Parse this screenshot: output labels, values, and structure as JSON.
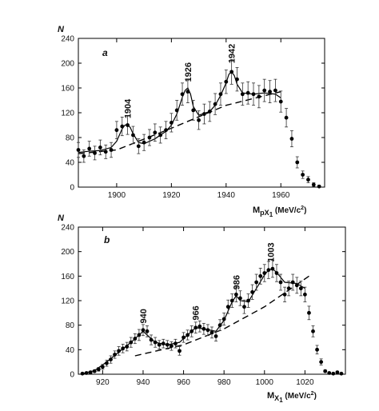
{
  "chart_data": [
    {
      "type": "scatter",
      "panel_label": "a",
      "y_title": "N",
      "x_label_main": "M",
      "x_label_sub": "pX",
      "x_label_subsub": "1",
      "x_label_unit_open": " (MeV/c",
      "x_label_unit_sup": "2",
      "x_label_unit_close": ")",
      "xlim": [
        1886,
        1976
      ],
      "ylim": [
        0,
        240
      ],
      "x_ticks": [
        1900,
        1920,
        1940,
        1960
      ],
      "y_ticks": [
        0,
        40,
        80,
        120,
        160,
        200,
        240
      ],
      "peaks": [
        {
          "label": "1904",
          "x": 1904,
          "y": 103
        },
        {
          "label": "1926",
          "x": 1926,
          "y": 162
        },
        {
          "label": "1942",
          "x": 1942,
          "y": 192
        }
      ],
      "series": [
        {
          "x": [
            1886,
            1888,
            1890,
            1892,
            1894,
            1896,
            1898,
            1900,
            1902,
            1904,
            1906,
            1908,
            1910,
            1912,
            1914,
            1916,
            1918,
            1920,
            1922,
            1924,
            1926,
            1928,
            1930,
            1932,
            1934,
            1936,
            1938,
            1940,
            1942,
            1944,
            1946,
            1948,
            1950,
            1952,
            1954,
            1956,
            1958,
            1960,
            1962,
            1964,
            1966,
            1968,
            1970,
            1972,
            1974
          ],
          "y": [
            60,
            50,
            62,
            55,
            64,
            57,
            60,
            92,
            98,
            100,
            84,
            66,
            72,
            80,
            88,
            84,
            92,
            104,
            124,
            150,
            154,
            124,
            108,
            118,
            122,
            134,
            150,
            170,
            186,
            174,
            150,
            152,
            150,
            146,
            156,
            154,
            156,
            138,
            112,
            78,
            40,
            20,
            12,
            4,
            1
          ],
          "err": [
            12,
            10,
            12,
            11,
            12,
            11,
            12,
            14,
            15,
            15,
            14,
            12,
            13,
            13,
            14,
            13,
            14,
            15,
            16,
            18,
            18,
            16,
            15,
            16,
            16,
            17,
            18,
            19,
            20,
            19,
            18,
            18,
            18,
            18,
            18,
            18,
            18,
            17,
            15,
            13,
            9,
            6,
            5,
            3,
            2
          ]
        }
      ],
      "fit_curve": {
        "x": [
          1886,
          1890,
          1894,
          1898,
          1900,
          1902,
          1903,
          1904,
          1905,
          1906,
          1908,
          1910,
          1914,
          1918,
          1920,
          1922,
          1924,
          1925,
          1926,
          1927,
          1928,
          1930,
          1934,
          1936,
          1938,
          1940,
          1941,
          1942,
          1943,
          1944,
          1946,
          1950,
          1954,
          1958,
          1960
        ],
        "y": [
          56,
          58,
          59,
          64,
          74,
          94,
          100,
          101,
          96,
          86,
          72,
          70,
          78,
          90,
          100,
          118,
          145,
          156,
          160,
          150,
          130,
          116,
          122,
          132,
          148,
          168,
          182,
          186,
          180,
          166,
          152,
          150,
          152,
          150,
          144
        ]
      },
      "background_curve": {
        "x": [
          1886,
          1900,
          1920,
          1940,
          1960
        ],
        "y": [
          54,
          60,
          95,
          132,
          154
        ]
      }
    },
    {
      "type": "scatter",
      "panel_label": "b",
      "y_title": "N",
      "x_label_main": "M",
      "x_label_sub": "X",
      "x_label_subsub": "1",
      "x_label_unit_open": " (MeV/c",
      "x_label_unit_sup": "2",
      "x_label_unit_close": ")",
      "xlim": [
        908,
        1040
      ],
      "ylim": [
        0,
        240
      ],
      "x_ticks": [
        920,
        940,
        960,
        980,
        1000,
        1020
      ],
      "y_ticks": [
        0,
        40,
        80,
        120,
        160,
        200,
        240
      ],
      "peaks": [
        {
          "label": "940",
          "x": 940,
          "y": 75
        },
        {
          "label": "966",
          "x": 966,
          "y": 80
        },
        {
          "label": "986",
          "x": 986,
          "y": 130
        },
        {
          "label": "1003",
          "x": 1003,
          "y": 175
        }
      ],
      "series": [
        {
          "x": [
            910,
            912,
            914,
            916,
            918,
            920,
            922,
            924,
            926,
            928,
            930,
            932,
            934,
            936,
            938,
            940,
            942,
            944,
            946,
            948,
            950,
            952,
            954,
            956,
            958,
            960,
            962,
            964,
            966,
            968,
            970,
            972,
            974,
            976,
            978,
            980,
            982,
            984,
            986,
            988,
            990,
            992,
            994,
            996,
            998,
            1000,
            1002,
            1004,
            1006,
            1008,
            1010,
            1012,
            1014,
            1016,
            1018,
            1020,
            1022,
            1024,
            1026,
            1028,
            1030,
            1032,
            1034,
            1036,
            1038
          ],
          "y": [
            1,
            2,
            3,
            5,
            8,
            12,
            18,
            24,
            32,
            38,
            42,
            45,
            52,
            58,
            64,
            72,
            70,
            56,
            52,
            48,
            50,
            48,
            46,
            50,
            38,
            60,
            64,
            70,
            76,
            78,
            74,
            72,
            68,
            62,
            80,
            90,
            110,
            120,
            130,
            124,
            110,
            120,
            134,
            150,
            160,
            165,
            170,
            172,
            165,
            150,
            130,
            140,
            150,
            145,
            140,
            130,
            100,
            70,
            40,
            20,
            5,
            2,
            1,
            3,
            1
          ],
          "err": [
            1,
            1,
            2,
            2,
            3,
            4,
            5,
            6,
            6,
            7,
            7,
            7,
            8,
            8,
            9,
            9,
            9,
            8,
            8,
            7,
            7,
            7,
            7,
            7,
            7,
            8,
            8,
            9,
            9,
            9,
            9,
            9,
            9,
            8,
            9,
            10,
            11,
            11,
            12,
            12,
            11,
            11,
            12,
            13,
            13,
            14,
            14,
            14,
            14,
            13,
            12,
            12,
            13,
            13,
            12,
            12,
            11,
            9,
            7,
            5,
            2,
            1,
            1,
            2,
            1
          ]
        }
      ],
      "fit_curve": {
        "x": [
          910,
          916,
          922,
          928,
          934,
          938,
          940,
          942,
          946,
          952,
          958,
          962,
          966,
          970,
          976,
          980,
          984,
          986,
          988,
          992,
          996,
          1000,
          1002,
          1004,
          1006,
          1010,
          1016,
          1020
        ],
        "y": [
          1,
          6,
          20,
          36,
          52,
          64,
          70,
          64,
          52,
          48,
          52,
          64,
          76,
          74,
          70,
          88,
          118,
          128,
          120,
          118,
          140,
          162,
          170,
          172,
          166,
          150,
          148,
          140
        ]
      },
      "background_curve": {
        "x": [
          936,
          960,
          980,
          1000,
          1022
        ],
        "y": [
          30,
          48,
          74,
          110,
          160
        ]
      }
    }
  ]
}
